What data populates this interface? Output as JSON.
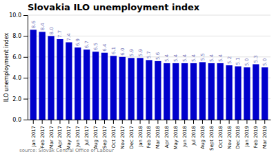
{
  "chart_data": {
    "type": "bar",
    "title": "Slovakia ILO unemployment index",
    "ylabel": "ILO unemployment index",
    "annotations": [
      "source: Slovak Central Office of Labour"
    ],
    "categories": [
      "Jan 2017",
      "Feb 2017",
      "Mar 2017",
      "Apr 2017",
      "May 2017",
      "Jun 2017",
      "Jul 2017",
      "Aug 2017",
      "Sep 2017",
      "Oct 2017",
      "Nov 2017",
      "Dec 2017",
      "Jan 2018",
      "Feb 2018",
      "Mar 2018",
      "Apr 2018",
      "May 2018",
      "Jun 2018",
      "Jul 2018",
      "Aug 2018",
      "Sept 2018",
      "Oct 2018",
      "Nov 2018",
      "Dec 2018",
      "Jan 2019",
      "Feb 2019",
      "Mar 2019"
    ],
    "values": [
      8.6,
      8.4,
      8.0,
      7.7,
      7.4,
      6.9,
      6.7,
      6.5,
      6.4,
      6.1,
      6.0,
      5.9,
      5.9,
      5.7,
      5.6,
      5.4,
      5.4,
      5.4,
      5.4,
      5.5,
      5.4,
      5.4,
      5.2,
      5.1,
      5.0,
      5.3,
      5.0
    ],
    "value_labels": [
      "8.6",
      "8.4",
      "8.0",
      "7.7",
      "7.4",
      "6.9",
      "6.7",
      "6.5",
      "6.4",
      "6.1",
      "6.0",
      "5.9",
      "5.9",
      "5.7",
      "5.6",
      "5.4",
      "5.4",
      "5.4",
      "5.4",
      "5.5",
      "5.4",
      "5.4",
      "5.2",
      "5.1",
      "5.0",
      "5.3",
      "5.0"
    ],
    "data_labels": true,
    "color": "#0000cc",
    "ylim": [
      0,
      10.0
    ],
    "yticks": [
      {
        "value": 0.0,
        "label": "0.0"
      },
      {
        "value": 2.0,
        "label": "2.0"
      },
      {
        "value": 4.0,
        "label": "4.0"
      },
      {
        "value": 6.0,
        "label": "6.0"
      },
      {
        "value": 8.0,
        "label": "8.0"
      },
      {
        "value": 10.0,
        "label": "10.0"
      }
    ],
    "grid": true
  }
}
